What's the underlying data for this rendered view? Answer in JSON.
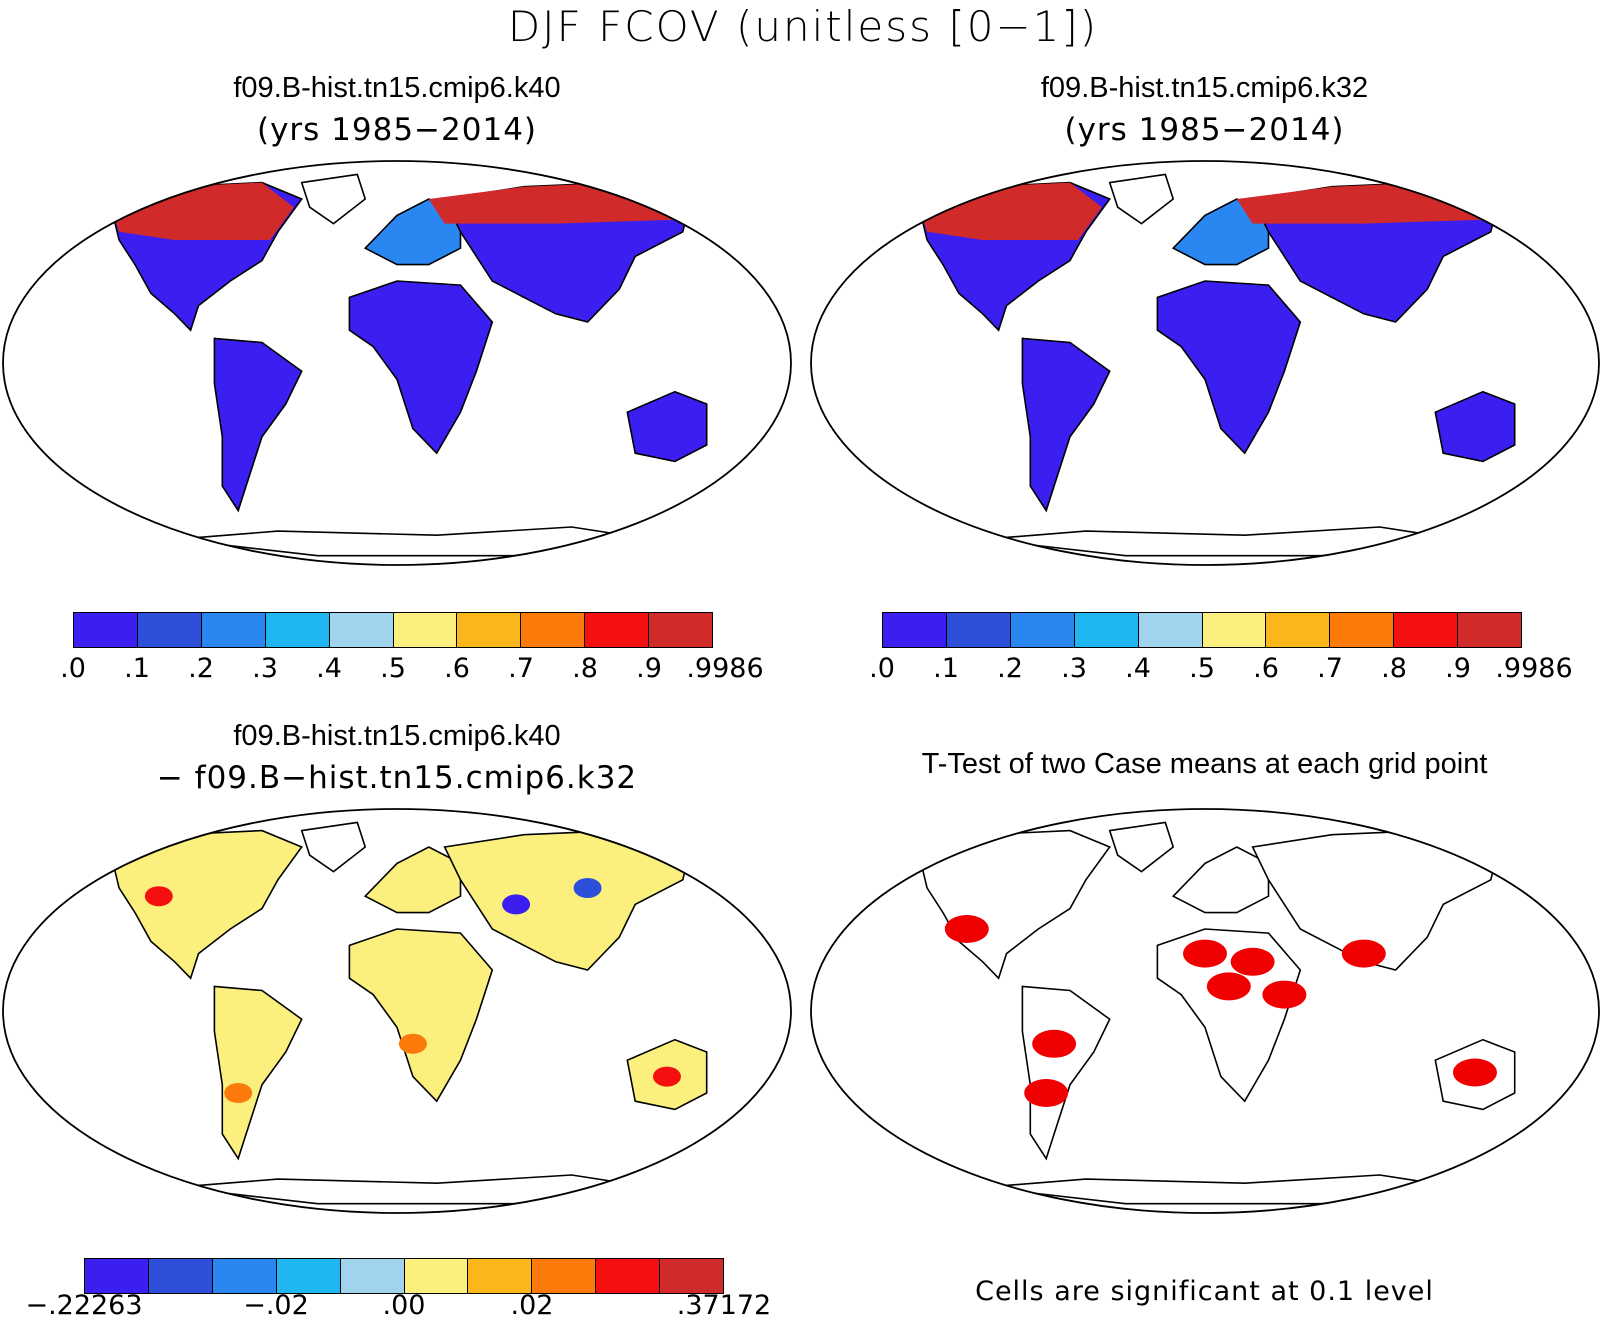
{
  "figure": {
    "title": "DJF FCOV (unitless [0−1])"
  },
  "panels": [
    {
      "title": "f09.B-hist.tn15.cmip6.k40",
      "subtitle": "(yrs 1985−2014)",
      "type": "case-map"
    },
    {
      "title": "f09.B-hist.tn15.cmip6.k32",
      "subtitle": "(yrs 1985−2014)",
      "type": "case-map"
    },
    {
      "title": "f09.B-hist.tn15.cmip6.k40",
      "subtitle": "− f09.B−hist.tn15.cmip6.k32",
      "type": "difference-map"
    },
    {
      "title": "T-Test of two Case means at each grid point",
      "subtitle": "",
      "type": "significance-map",
      "note": "Cells are significant at 0.1 level"
    }
  ],
  "colorbars": {
    "case": {
      "colors": [
        "#3a1ff0",
        "#2e4fd9",
        "#2a86f0",
        "#1fb6f2",
        "#9fd3ee",
        "#fbf07e",
        "#fbb61c",
        "#fb7a0a",
        "#f51010",
        "#d12a2a"
      ],
      "tick_labels": [
        ".0",
        ".1",
        ".2",
        ".3",
        ".4",
        ".5",
        ".6",
        ".7",
        ".8",
        ".9",
        ".9986"
      ]
    },
    "diff": {
      "colors": [
        "#3a1ff0",
        "#2e4fd9",
        "#2a86f0",
        "#1fb6f2",
        "#9fd3ee",
        "#fbf07e",
        "#fbb61c",
        "#fb7a0a",
        "#f51010",
        "#d12a2a"
      ],
      "tick_labels": [
        "−.22263",
        "−.02",
        ".00",
        ".02",
        ".37172"
      ]
    }
  },
  "colors": {
    "significant": "#f00000",
    "land_outline": "#000000"
  }
}
